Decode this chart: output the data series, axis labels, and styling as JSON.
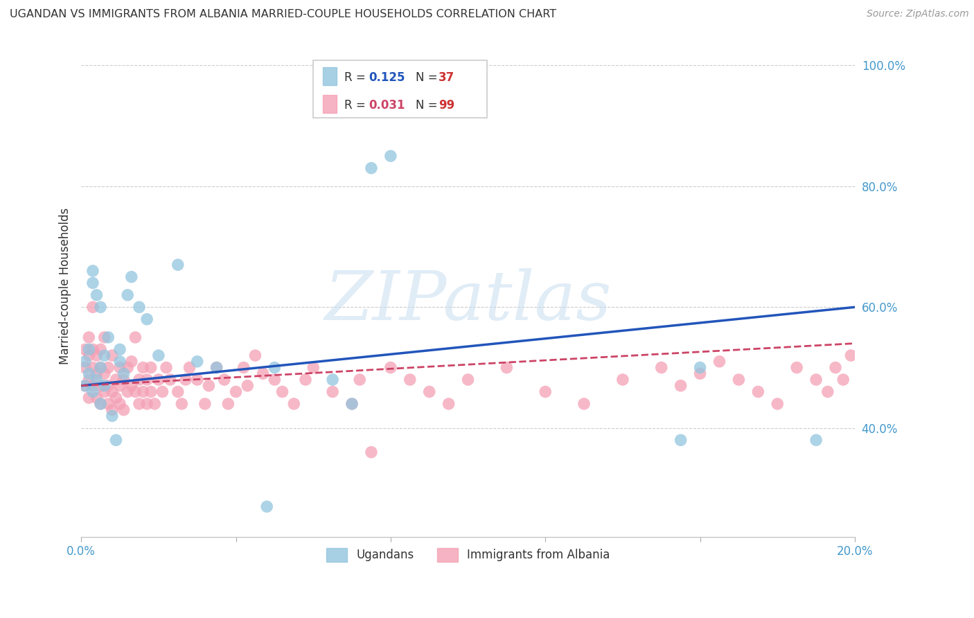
{
  "title": "UGANDAN VS IMMIGRANTS FROM ALBANIA MARRIED-COUPLE HOUSEHOLDS CORRELATION CHART",
  "source": "Source: ZipAtlas.com",
  "ylabel": "Married-couple Households",
  "xlim": [
    0.0,
    0.2
  ],
  "ylim": [
    0.22,
    1.05
  ],
  "xticks": [
    0.0,
    0.04,
    0.08,
    0.12,
    0.16,
    0.2
  ],
  "yticks": [
    0.4,
    0.6,
    0.8,
    1.0
  ],
  "ytick_labels": [
    "40.0%",
    "60.0%",
    "80.0%",
    "100.0%"
  ],
  "xtick_labels": [
    "0.0%",
    "",
    "",
    "",
    "",
    "20.0%"
  ],
  "watermark": "ZIPatlas",
  "series1_label": "Ugandans",
  "series1_color": "#92c5de",
  "series2_label": "Immigrants from Albania",
  "series2_color": "#f4a0b5",
  "grid_color": "#cccccc",
  "background_color": "#ffffff",
  "title_color": "#333333",
  "axis_color": "#4499cc",
  "blue_line_color": "#2255bb",
  "pink_line_color": "#cc4466",
  "legend_blue_val_color": "#2255bb",
  "legend_pink_val_color": "#cc4466",
  "legend_n_color": "#cc3333",
  "ugandan_x": [
    0.001,
    0.001,
    0.002,
    0.002,
    0.003,
    0.003,
    0.003,
    0.004,
    0.004,
    0.005,
    0.005,
    0.005,
    0.006,
    0.006,
    0.007,
    0.008,
    0.009,
    0.01,
    0.01,
    0.011,
    0.012,
    0.013,
    0.015,
    0.017,
    0.02,
    0.025,
    0.03,
    0.035,
    0.048,
    0.05,
    0.065,
    0.07,
    0.075,
    0.08,
    0.155,
    0.16,
    0.19
  ],
  "ugandan_y": [
    0.47,
    0.51,
    0.53,
    0.49,
    0.46,
    0.64,
    0.66,
    0.48,
    0.62,
    0.44,
    0.5,
    0.6,
    0.47,
    0.52,
    0.55,
    0.42,
    0.38,
    0.51,
    0.53,
    0.49,
    0.62,
    0.65,
    0.6,
    0.58,
    0.52,
    0.67,
    0.51,
    0.5,
    0.27,
    0.5,
    0.48,
    0.44,
    0.83,
    0.85,
    0.38,
    0.5,
    0.38
  ],
  "albania_x": [
    0.001,
    0.001,
    0.001,
    0.002,
    0.002,
    0.002,
    0.002,
    0.003,
    0.003,
    0.003,
    0.003,
    0.004,
    0.004,
    0.004,
    0.005,
    0.005,
    0.005,
    0.005,
    0.006,
    0.006,
    0.006,
    0.007,
    0.007,
    0.007,
    0.008,
    0.008,
    0.008,
    0.009,
    0.009,
    0.01,
    0.01,
    0.01,
    0.011,
    0.011,
    0.012,
    0.012,
    0.013,
    0.013,
    0.014,
    0.014,
    0.015,
    0.015,
    0.016,
    0.016,
    0.017,
    0.017,
    0.018,
    0.018,
    0.019,
    0.02,
    0.021,
    0.022,
    0.023,
    0.025,
    0.026,
    0.027,
    0.028,
    0.03,
    0.032,
    0.033,
    0.035,
    0.037,
    0.038,
    0.04,
    0.042,
    0.043,
    0.045,
    0.047,
    0.05,
    0.052,
    0.055,
    0.058,
    0.06,
    0.065,
    0.07,
    0.072,
    0.075,
    0.08,
    0.085,
    0.09,
    0.095,
    0.1,
    0.11,
    0.12,
    0.13,
    0.14,
    0.15,
    0.155,
    0.16,
    0.165,
    0.17,
    0.175,
    0.18,
    0.185,
    0.19,
    0.193,
    0.195,
    0.197,
    0.199
  ],
  "albania_y": [
    0.47,
    0.5,
    0.53,
    0.45,
    0.48,
    0.52,
    0.55,
    0.47,
    0.5,
    0.53,
    0.6,
    0.45,
    0.49,
    0.52,
    0.44,
    0.47,
    0.5,
    0.53,
    0.46,
    0.49,
    0.55,
    0.44,
    0.47,
    0.5,
    0.43,
    0.46,
    0.52,
    0.45,
    0.48,
    0.44,
    0.47,
    0.5,
    0.43,
    0.48,
    0.46,
    0.5,
    0.47,
    0.51,
    0.46,
    0.55,
    0.44,
    0.48,
    0.46,
    0.5,
    0.44,
    0.48,
    0.46,
    0.5,
    0.44,
    0.48,
    0.46,
    0.5,
    0.48,
    0.46,
    0.44,
    0.48,
    0.5,
    0.48,
    0.44,
    0.47,
    0.5,
    0.48,
    0.44,
    0.46,
    0.5,
    0.47,
    0.52,
    0.49,
    0.48,
    0.46,
    0.44,
    0.48,
    0.5,
    0.46,
    0.44,
    0.48,
    0.36,
    0.5,
    0.48,
    0.46,
    0.44,
    0.48,
    0.5,
    0.46,
    0.44,
    0.48,
    0.5,
    0.47,
    0.49,
    0.51,
    0.48,
    0.46,
    0.44,
    0.5,
    0.48,
    0.46,
    0.5,
    0.48,
    0.52
  ]
}
